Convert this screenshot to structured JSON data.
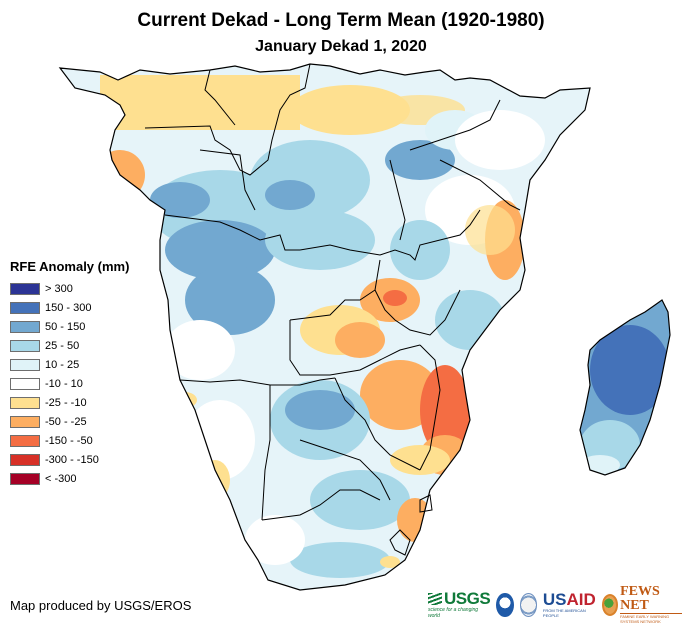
{
  "title": "Current Dekad - Long Term Mean (1920-1980)",
  "subtitle": "January Dekad 1, 2020",
  "legend": {
    "title": "RFE Anomaly (mm)",
    "items": [
      {
        "label": "> 300",
        "color": "#2c3495"
      },
      {
        "label": "150 - 300",
        "color": "#4472b9"
      },
      {
        "label": "50 - 150",
        "color": "#72a8d0"
      },
      {
        "label": "25 - 50",
        "color": "#a8d8e8"
      },
      {
        "label": "10 - 25",
        "color": "#e0f3f8"
      },
      {
        "label": "-10 - 10",
        "color": "#ffffff"
      },
      {
        "label": "-25 - -10",
        "color": "#fee090"
      },
      {
        "label": "-50 - -25",
        "color": "#fdae61"
      },
      {
        "label": "-150 - -50",
        "color": "#f46d43"
      },
      {
        "label": "-300 - -150",
        "color": "#d73027"
      },
      {
        "label": "< -300",
        "color": "#a50026"
      }
    ]
  },
  "credit": "Map produced by USGS/EROS",
  "logos": {
    "usgs": {
      "name": "USGS",
      "tagline": "science for a changing world"
    },
    "noaa": {
      "name": "NOAA"
    },
    "usaid": {
      "name_blue": "US",
      "name_red": "AID",
      "tagline": "FROM THE AMERICAN PEOPLE"
    },
    "fews": {
      "name": "FEWS NET",
      "tagline": "FAMINE EARLY WARNING SYSTEMS NETWORK"
    }
  },
  "map": {
    "region": "Central and Southern Africa with Madagascar",
    "variable": "Rainfall estimate anomaly"
  }
}
